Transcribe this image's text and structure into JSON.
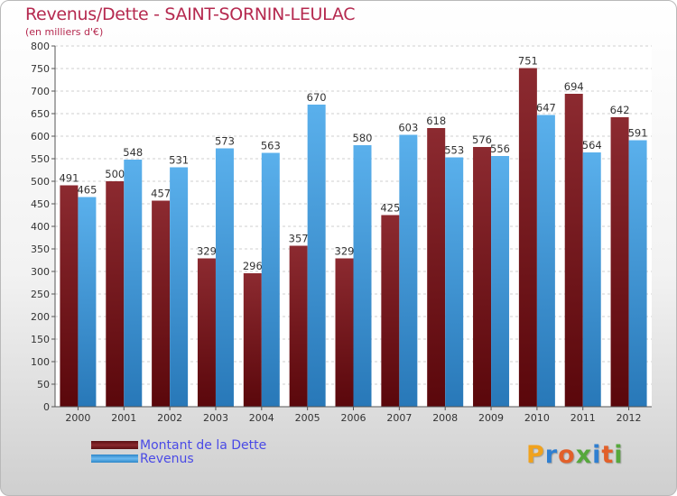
{
  "chart_data": {
    "type": "bar",
    "title": "Revenus/Dette - SAINT-SORNIN-LEULAC",
    "subtitle": "(en milliers d'€)",
    "categories": [
      "2000",
      "2001",
      "2002",
      "2003",
      "2004",
      "2005",
      "2006",
      "2007",
      "2008",
      "2009",
      "2010",
      "2011",
      "2012"
    ],
    "series": [
      {
        "name": "Montant de la Dette",
        "color": "#7a1a1e",
        "values": [
          491,
          500,
          457,
          329,
          296,
          357,
          329,
          425,
          618,
          576,
          751,
          694,
          642
        ]
      },
      {
        "name": "Revenus",
        "color": "#4aa6e6",
        "values": [
          465,
          548,
          531,
          573,
          563,
          670,
          580,
          603,
          553,
          556,
          647,
          564,
          591
        ]
      }
    ],
    "ylim": [
      0,
      800
    ],
    "yticks": [
      0,
      50,
      100,
      150,
      200,
      250,
      300,
      350,
      400,
      450,
      500,
      550,
      600,
      650,
      700,
      750,
      800
    ],
    "grid": true,
    "legend_position": "bottom-left"
  },
  "logo": {
    "text": "Proxiti",
    "letters": [
      {
        "ch": "P",
        "color": "#f0a21e"
      },
      {
        "ch": "r",
        "color": "#2f7fd1"
      },
      {
        "ch": "o",
        "color": "#e2602a"
      },
      {
        "ch": "x",
        "color": "#56a83c"
      },
      {
        "ch": "i",
        "color": "#2f7fd1"
      },
      {
        "ch": "t",
        "color": "#e2602a"
      },
      {
        "ch": "i",
        "color": "#56a83c"
      }
    ]
  }
}
